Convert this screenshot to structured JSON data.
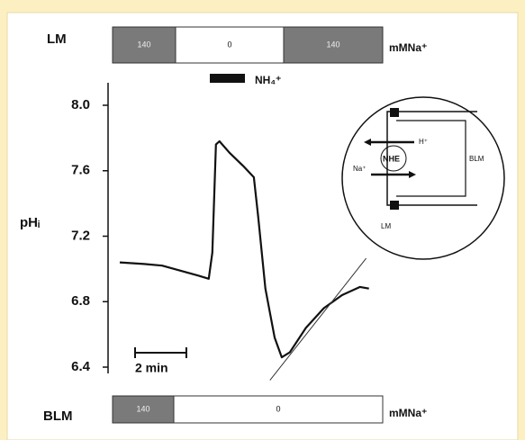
{
  "chart_data": {
    "type": "line",
    "y_label": "pHᵢ",
    "x": [
      0,
      0.95,
      1.65,
      2.35,
      3.05,
      3.47,
      3.61,
      3.75,
      3.89,
      4.28,
      4.81,
      5.23,
      5.4,
      5.68,
      6.04,
      6.32,
      6.63,
      7.26,
      7.96,
      8.67,
      9.37,
      9.72
    ],
    "series": [
      {
        "color": "#111111",
        "values": [
          7.04,
          7.03,
          7.02,
          6.99,
          6.96,
          6.94,
          7.1,
          7.76,
          7.78,
          7.71,
          7.63,
          7.56,
          7.32,
          6.88,
          6.58,
          6.46,
          6.49,
          6.64,
          6.76,
          6.84,
          6.89,
          6.88
        ]
      }
    ],
    "fit_line": {
      "color": "#333333",
      "x": [
        5.86,
        9.61
      ],
      "values": [
        6.32,
        7.065
      ]
    },
    "xlim": [
      0,
      9.8
    ],
    "ylim": [
      6.3,
      8.1
    ],
    "yticks": [
      {
        "value": 8,
        "label": "8.0"
      },
      7.6,
      7.2,
      6.8,
      6.4
    ],
    "scale_bar": {
      "value": 2,
      "label": "2 min"
    }
  },
  "top_bar": {
    "label": "LM",
    "segments": [
      "140",
      "0",
      "140"
    ],
    "unit": "mMNa⁺"
  },
  "nh4": {
    "label": "NH₄⁺"
  },
  "bottom_bar": {
    "label": "BLM",
    "segments": [
      "140",
      "0"
    ],
    "unit": "mMNa⁺"
  },
  "inset": {
    "labels": [
      "H⁺",
      "Na⁺",
      "NHE",
      "BLM",
      "LM"
    ]
  }
}
